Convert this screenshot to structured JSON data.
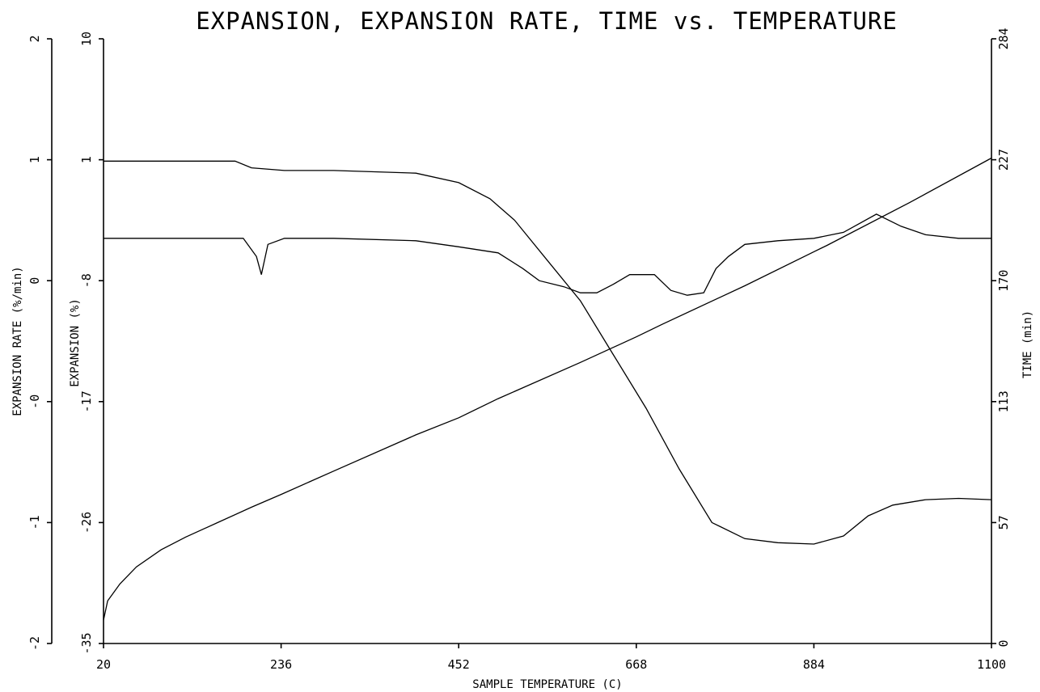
{
  "chart_data": {
    "type": "line",
    "title": "EXPANSION, EXPANSION RATE, TIME vs. TEMPERATURE",
    "xlabel": "SAMPLE TEMPERATURE (C)",
    "xlim": [
      20,
      1100
    ],
    "xticks": [
      "20",
      "236",
      "452",
      "668",
      "884",
      "1100"
    ],
    "axes": {
      "rate": {
        "label": "EXPANSION RATE (%/min)",
        "ylim": [
          -2,
          2
        ],
        "ticks": [
          {
            "value": -2,
            "label": "-2"
          },
          {
            "value": -1,
            "label": "-1"
          },
          {
            "value": 0,
            "label": "-0"
          },
          {
            "value": 1,
            "label": "0"
          },
          {
            "value": 2,
            "label": "1"
          },
          {
            "value": 3,
            "label": "2"
          }
        ]
      },
      "expansion": {
        "label": "EXPANSION (%)",
        "ylim": [
          -35,
          10
        ],
        "ticks": [
          {
            "value": -35,
            "label": "-35"
          },
          {
            "value": -26,
            "label": "-26"
          },
          {
            "value": -17,
            "label": "-17"
          },
          {
            "value": -8,
            "label": "-8"
          },
          {
            "value": 1,
            "label": "1"
          },
          {
            "value": 10,
            "label": "10"
          }
        ]
      },
      "time": {
        "label": "TIME (min)",
        "ylim": [
          0,
          284
        ],
        "ticks": [
          {
            "value": 0,
            "label": "0"
          },
          {
            "value": 57,
            "label": "57"
          },
          {
            "value": 113,
            "label": "113"
          },
          {
            "value": 170,
            "label": "170"
          },
          {
            "value": 227,
            "label": "227"
          },
          {
            "value": 284,
            "label": "284"
          }
        ]
      }
    },
    "series": [
      {
        "axis": "expansion",
        "x": [
          20,
          100,
          180,
          200,
          240,
          300,
          400,
          452,
          490,
          520,
          560,
          600,
          640,
          680,
          720,
          760,
          800,
          840,
          884,
          920,
          950,
          980,
          1020,
          1060,
          1100
        ],
        "y": [
          0.9,
          0.9,
          0.9,
          0.4,
          0.2,
          0.2,
          0.0,
          -0.7,
          -1.9,
          -3.5,
          -6.5,
          -9.5,
          -13.5,
          -17.5,
          -22.0,
          -26.0,
          -27.2,
          -27.5,
          -27.6,
          -27.0,
          -25.5,
          -24.7,
          -24.3,
          -24.2,
          -24.3
        ]
      },
      {
        "axis": "rate",
        "x": [
          20,
          100,
          190,
          206,
          212,
          220,
          240,
          300,
          400,
          452,
          500,
          530,
          550,
          580,
          600,
          620,
          640,
          660,
          690,
          710,
          730,
          750,
          765,
          780,
          800,
          840,
          884,
          920,
          960,
          990,
          1020,
          1060,
          1100
        ],
        "y": [
          1.35,
          1.35,
          1.35,
          1.2,
          1.05,
          1.3,
          1.35,
          1.35,
          1.33,
          1.28,
          1.23,
          1.1,
          1.0,
          0.95,
          0.9,
          0.9,
          0.97,
          1.05,
          1.05,
          0.92,
          0.88,
          0.9,
          1.1,
          1.2,
          1.3,
          1.33,
          1.35,
          1.4,
          1.55,
          1.45,
          1.38,
          1.35,
          1.35
        ]
      },
      {
        "axis": "time",
        "x": [
          20,
          25,
          40,
          60,
          90,
          120,
          160,
          200,
          236,
          300,
          400,
          452,
          500,
          600,
          668,
          700,
          800,
          884,
          900,
          1000,
          1100
        ],
        "y": [
          11,
          20,
          28,
          36,
          44,
          50,
          57,
          64,
          70,
          81,
          98,
          106,
          115,
          132,
          144,
          150,
          168,
          184,
          187,
          207,
          228
        ]
      }
    ]
  }
}
